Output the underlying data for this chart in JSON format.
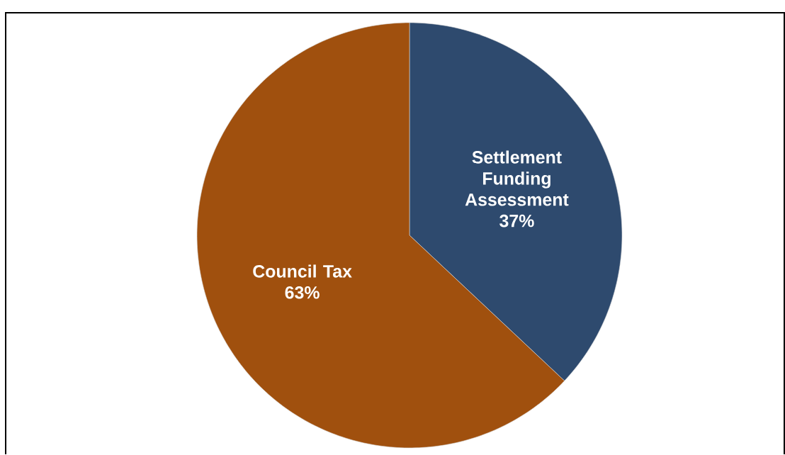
{
  "chart_data": {
    "type": "pie",
    "categories": [
      "Settlement Funding Assessment",
      "Council Tax"
    ],
    "values": [
      37,
      63
    ],
    "colors": [
      "#2e4a6e",
      "#a0500e"
    ],
    "value_labels": [
      "37%",
      "63%"
    ]
  }
}
